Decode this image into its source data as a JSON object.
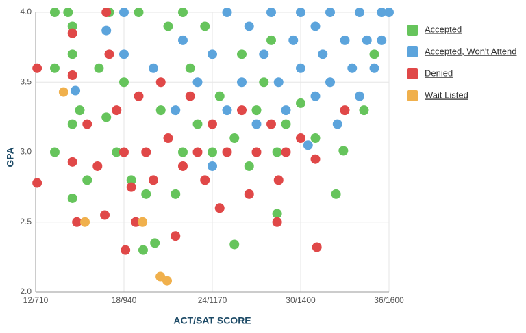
{
  "chart_data": {
    "type": "scatter",
    "x_label": "ACT/SAT SCORE",
    "y_label": "GPA",
    "xlim": [
      12,
      36
    ],
    "ylim": [
      2,
      4
    ],
    "xticks": [
      {
        "value": 12,
        "label": "12/710"
      },
      {
        "value": 18,
        "label": "18/940"
      },
      {
        "value": 24,
        "label": "24/1170"
      },
      {
        "value": 30,
        "label": "30/1400"
      },
      {
        "value": 36,
        "label": "36/1600"
      }
    ],
    "yticks": [
      {
        "value": 2,
        "label": "2.0"
      },
      {
        "value": 2.5,
        "label": "2.5"
      },
      {
        "value": 3,
        "label": "3.0"
      },
      {
        "value": 3.5,
        "label": "3.5"
      },
      {
        "value": 4,
        "label": "4.0"
      }
    ],
    "grid": true,
    "legend": "right",
    "series": [
      {
        "name": "Accepted",
        "color": "#66c45c",
        "x": [
          13.3,
          14.2,
          14.5,
          14.5,
          14.5,
          14.5,
          13.3,
          13.3,
          15,
          15.5,
          16.3,
          16.8,
          17,
          17.5,
          18,
          18.5,
          19.3,
          19.5,
          20.1,
          20.5,
          21,
          21.5,
          22,
          22.5,
          23,
          23.5,
          24,
          24.5,
          25.5,
          25.5,
          26,
          26.5,
          27,
          27.5,
          28.4,
          28.4,
          29,
          30,
          31,
          32.4,
          32.9,
          34.3,
          35,
          19,
          22,
          28
        ],
        "values": [
          4.0,
          4.0,
          3.9,
          3.7,
          3.2,
          2.67,
          3.0,
          3.6,
          3.3,
          2.8,
          3.6,
          3.25,
          4.0,
          3.0,
          3.5,
          2.8,
          2.3,
          2.7,
          2.35,
          3.3,
          3.9,
          2.7,
          3.0,
          3.6,
          3.2,
          3.9,
          3.0,
          3.4,
          2.34,
          3.1,
          3.7,
          2.9,
          3.3,
          3.5,
          2.56,
          3.0,
          3.2,
          3.35,
          3.1,
          2.7,
          3.01,
          3.3,
          3.7,
          4.0,
          4.0,
          3.8
        ]
      },
      {
        "name": "Accepted, Won't Attend",
        "color": "#5ca4dc",
        "x": [
          14.7,
          16.8,
          18,
          18,
          20,
          21.5,
          22,
          23,
          24,
          24,
          25,
          25,
          26,
          26.5,
          27,
          27.5,
          28,
          28.5,
          29,
          29.5,
          30,
          30,
          31,
          31,
          31.5,
          32,
          32,
          32.5,
          33,
          33.5,
          34,
          34,
          34.5,
          35,
          35.5,
          35.5,
          36,
          30.5
        ],
        "values": [
          3.44,
          3.87,
          4.0,
          3.7,
          3.6,
          3.3,
          3.8,
          3.5,
          2.9,
          3.7,
          4.0,
          3.3,
          3.5,
          3.9,
          3.2,
          3.7,
          4.0,
          3.5,
          3.3,
          3.8,
          4.0,
          3.6,
          3.9,
          3.4,
          3.7,
          3.5,
          4.0,
          3.2,
          3.8,
          3.6,
          4.0,
          3.4,
          3.8,
          3.6,
          4.0,
          3.8,
          4.0,
          3.05
        ]
      },
      {
        "name": "Denied",
        "color": "#e04848",
        "x": [
          12.1,
          12.1,
          14.5,
          14.5,
          14.8,
          14.5,
          15.5,
          16.2,
          16.7,
          16.8,
          17,
          17.5,
          18,
          18.1,
          18.5,
          18.8,
          19,
          19.5,
          20,
          20.5,
          21,
          21.5,
          22,
          22.5,
          23,
          23.5,
          24,
          24.5,
          25,
          26,
          26.5,
          27,
          28,
          28.4,
          28.5,
          29,
          30,
          31,
          31.1,
          33
        ],
        "values": [
          2.78,
          3.6,
          3.85,
          2.93,
          2.5,
          3.55,
          3.2,
          2.9,
          2.55,
          4.0,
          3.7,
          3.3,
          3.0,
          2.3,
          2.75,
          2.5,
          3.4,
          3.0,
          2.8,
          3.5,
          3.1,
          2.4,
          2.9,
          3.4,
          3.0,
          2.8,
          3.2,
          2.6,
          3.0,
          3.3,
          2.7,
          3.0,
          3.2,
          2.5,
          2.8,
          3.0,
          3.1,
          2.95,
          2.32,
          3.3
        ]
      },
      {
        "name": "Wait Listed",
        "color": "#f0b04c",
        "x": [
          13.9,
          15.35,
          19.26,
          20.47,
          20.93
        ],
        "values": [
          3.43,
          2.5,
          2.5,
          2.11,
          2.08
        ]
      }
    ]
  }
}
